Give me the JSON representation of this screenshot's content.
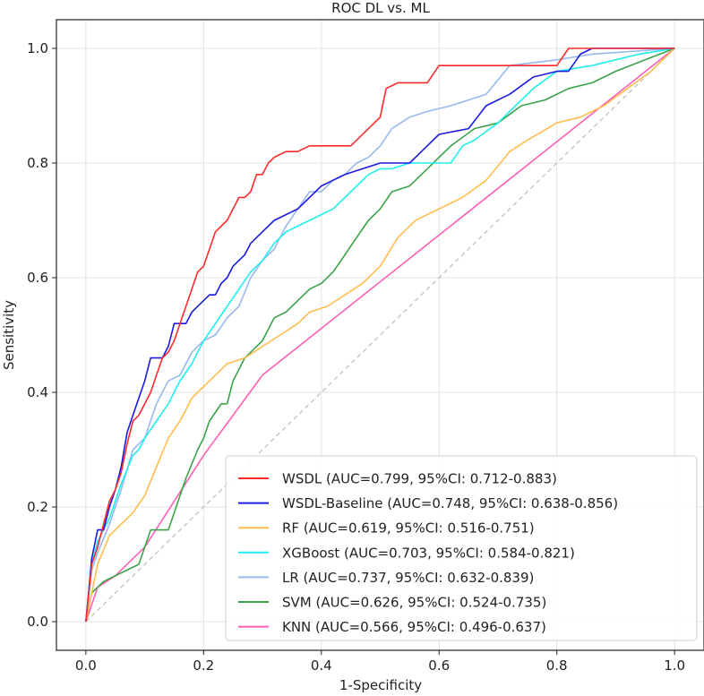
{
  "chart_data": {
    "type": "line",
    "title": "ROC DL vs. ML",
    "xlabel": "1-Specificity",
    "ylabel": "Sensitivity",
    "xlim": [
      -0.05,
      1.05
    ],
    "ylim": [
      -0.05,
      1.05
    ],
    "xticks": [
      0.0,
      0.2,
      0.4,
      0.6,
      0.8,
      1.0
    ],
    "yticks": [
      0.0,
      0.2,
      0.4,
      0.6,
      0.8,
      1.0
    ],
    "xtick_labels": [
      "0.0",
      "0.2",
      "0.4",
      "0.6",
      "0.8",
      "1.0"
    ],
    "ytick_labels": [
      "0.0",
      "0.2",
      "0.4",
      "0.6",
      "0.8",
      "1.0"
    ],
    "grid": true,
    "legend_position": "bottom-right",
    "diagonal": {
      "name": "chance",
      "color": "#bbbbbb",
      "points": [
        [
          0,
          0
        ],
        [
          1,
          1
        ]
      ]
    },
    "series": [
      {
        "name": "WSDL",
        "label": "WSDL (AUC=0.799, 95%CI: 0.712-0.883)",
        "color": "#ff2a2a",
        "points": [
          [
            0,
            0
          ],
          [
            0.01,
            0.1
          ],
          [
            0.02,
            0.13
          ],
          [
            0.03,
            0.17
          ],
          [
            0.04,
            0.21
          ],
          [
            0.05,
            0.23
          ],
          [
            0.06,
            0.26
          ],
          [
            0.07,
            0.31
          ],
          [
            0.08,
            0.35
          ],
          [
            0.09,
            0.36
          ],
          [
            0.1,
            0.38
          ],
          [
            0.11,
            0.4
          ],
          [
            0.12,
            0.43
          ],
          [
            0.13,
            0.46
          ],
          [
            0.14,
            0.47
          ],
          [
            0.15,
            0.49
          ],
          [
            0.16,
            0.52
          ],
          [
            0.17,
            0.55
          ],
          [
            0.18,
            0.58
          ],
          [
            0.19,
            0.61
          ],
          [
            0.2,
            0.62
          ],
          [
            0.21,
            0.65
          ],
          [
            0.22,
            0.68
          ],
          [
            0.24,
            0.7
          ],
          [
            0.26,
            0.74
          ],
          [
            0.27,
            0.74
          ],
          [
            0.28,
            0.75
          ],
          [
            0.29,
            0.78
          ],
          [
            0.3,
            0.78
          ],
          [
            0.31,
            0.8
          ],
          [
            0.32,
            0.81
          ],
          [
            0.34,
            0.82
          ],
          [
            0.36,
            0.82
          ],
          [
            0.38,
            0.83
          ],
          [
            0.45,
            0.83
          ],
          [
            0.46,
            0.84
          ],
          [
            0.48,
            0.86
          ],
          [
            0.5,
            0.88
          ],
          [
            0.51,
            0.93
          ],
          [
            0.53,
            0.94
          ],
          [
            0.58,
            0.94
          ],
          [
            0.6,
            0.97
          ],
          [
            0.8,
            0.97
          ],
          [
            0.82,
            1.0
          ],
          [
            1.0,
            1.0
          ]
        ]
      },
      {
        "name": "WSDL-Baseline",
        "label": "WSDL-Baseline (AUC=0.748, 95%CI: 0.638-0.856)",
        "color": "#1a1ae0",
        "points": [
          [
            0,
            0
          ],
          [
            0.01,
            0.11
          ],
          [
            0.02,
            0.16
          ],
          [
            0.03,
            0.16
          ],
          [
            0.04,
            0.2
          ],
          [
            0.05,
            0.23
          ],
          [
            0.06,
            0.27
          ],
          [
            0.07,
            0.33
          ],
          [
            0.08,
            0.36
          ],
          [
            0.09,
            0.39
          ],
          [
            0.1,
            0.42
          ],
          [
            0.11,
            0.46
          ],
          [
            0.13,
            0.46
          ],
          [
            0.14,
            0.48
          ],
          [
            0.15,
            0.52
          ],
          [
            0.17,
            0.52
          ],
          [
            0.18,
            0.54
          ],
          [
            0.2,
            0.56
          ],
          [
            0.21,
            0.57
          ],
          [
            0.22,
            0.57
          ],
          [
            0.23,
            0.59
          ],
          [
            0.24,
            0.6
          ],
          [
            0.25,
            0.62
          ],
          [
            0.27,
            0.64
          ],
          [
            0.28,
            0.66
          ],
          [
            0.3,
            0.68
          ],
          [
            0.32,
            0.7
          ],
          [
            0.34,
            0.71
          ],
          [
            0.36,
            0.72
          ],
          [
            0.38,
            0.74
          ],
          [
            0.4,
            0.76
          ],
          [
            0.42,
            0.77
          ],
          [
            0.44,
            0.78
          ],
          [
            0.47,
            0.79
          ],
          [
            0.5,
            0.8
          ],
          [
            0.55,
            0.8
          ],
          [
            0.57,
            0.82
          ],
          [
            0.6,
            0.85
          ],
          [
            0.65,
            0.86
          ],
          [
            0.68,
            0.9
          ],
          [
            0.72,
            0.92
          ],
          [
            0.76,
            0.95
          ],
          [
            0.8,
            0.96
          ],
          [
            0.82,
            0.96
          ],
          [
            0.84,
            0.99
          ],
          [
            0.86,
            1.0
          ],
          [
            1.0,
            1.0
          ]
        ]
      },
      {
        "name": "RF",
        "label": "RF (AUC=0.619, 95%CI: 0.516-0.751)",
        "color": "#ffbd4f",
        "points": [
          [
            0,
            0
          ],
          [
            0.02,
            0.1
          ],
          [
            0.04,
            0.15
          ],
          [
            0.06,
            0.17
          ],
          [
            0.08,
            0.19
          ],
          [
            0.1,
            0.22
          ],
          [
            0.12,
            0.27
          ],
          [
            0.14,
            0.32
          ],
          [
            0.16,
            0.35
          ],
          [
            0.18,
            0.39
          ],
          [
            0.2,
            0.41
          ],
          [
            0.22,
            0.43
          ],
          [
            0.24,
            0.45
          ],
          [
            0.27,
            0.46
          ],
          [
            0.3,
            0.48
          ],
          [
            0.33,
            0.5
          ],
          [
            0.36,
            0.52
          ],
          [
            0.38,
            0.54
          ],
          [
            0.41,
            0.55
          ],
          [
            0.44,
            0.57
          ],
          [
            0.47,
            0.59
          ],
          [
            0.5,
            0.62
          ],
          [
            0.53,
            0.67
          ],
          [
            0.56,
            0.7
          ],
          [
            0.6,
            0.72
          ],
          [
            0.64,
            0.74
          ],
          [
            0.68,
            0.77
          ],
          [
            0.72,
            0.82
          ],
          [
            0.75,
            0.84
          ],
          [
            0.8,
            0.87
          ],
          [
            0.84,
            0.88
          ],
          [
            0.88,
            0.9
          ],
          [
            0.92,
            0.93
          ],
          [
            0.96,
            0.96
          ],
          [
            1.0,
            1.0
          ]
        ]
      },
      {
        "name": "XGBoost",
        "label": "XGBoost (AUC=0.703, 95%CI: 0.584-0.821)",
        "color": "#22eeee",
        "points": [
          [
            0,
            0
          ],
          [
            0.01,
            0.1
          ],
          [
            0.02,
            0.14
          ],
          [
            0.04,
            0.18
          ],
          [
            0.06,
            0.24
          ],
          [
            0.08,
            0.29
          ],
          [
            0.09,
            0.3
          ],
          [
            0.1,
            0.32
          ],
          [
            0.12,
            0.35
          ],
          [
            0.14,
            0.38
          ],
          [
            0.16,
            0.42
          ],
          [
            0.18,
            0.45
          ],
          [
            0.2,
            0.49
          ],
          [
            0.22,
            0.52
          ],
          [
            0.24,
            0.55
          ],
          [
            0.26,
            0.58
          ],
          [
            0.28,
            0.61
          ],
          [
            0.3,
            0.63
          ],
          [
            0.32,
            0.66
          ],
          [
            0.34,
            0.68
          ],
          [
            0.36,
            0.69
          ],
          [
            0.38,
            0.7
          ],
          [
            0.4,
            0.71
          ],
          [
            0.42,
            0.72
          ],
          [
            0.44,
            0.74
          ],
          [
            0.46,
            0.76
          ],
          [
            0.48,
            0.78
          ],
          [
            0.5,
            0.79
          ],
          [
            0.52,
            0.79
          ],
          [
            0.55,
            0.8
          ],
          [
            0.62,
            0.8
          ],
          [
            0.64,
            0.83
          ],
          [
            0.66,
            0.84
          ],
          [
            0.7,
            0.87
          ],
          [
            0.74,
            0.91
          ],
          [
            0.76,
            0.93
          ],
          [
            0.8,
            0.96
          ],
          [
            0.86,
            0.97
          ],
          [
            0.9,
            0.98
          ],
          [
            0.94,
            0.99
          ],
          [
            1.0,
            1.0
          ]
        ]
      },
      {
        "name": "LR",
        "label": "LR (AUC=0.737, 95%CI: 0.632-0.839)",
        "color": "#99b8ee",
        "points": [
          [
            0,
            0
          ],
          [
            0.01,
            0.09
          ],
          [
            0.02,
            0.12
          ],
          [
            0.04,
            0.17
          ],
          [
            0.06,
            0.23
          ],
          [
            0.08,
            0.3
          ],
          [
            0.1,
            0.32
          ],
          [
            0.12,
            0.38
          ],
          [
            0.14,
            0.42
          ],
          [
            0.16,
            0.43
          ],
          [
            0.18,
            0.47
          ],
          [
            0.2,
            0.49
          ],
          [
            0.22,
            0.5
          ],
          [
            0.24,
            0.53
          ],
          [
            0.26,
            0.55
          ],
          [
            0.28,
            0.6
          ],
          [
            0.3,
            0.63
          ],
          [
            0.32,
            0.65
          ],
          [
            0.34,
            0.69
          ],
          [
            0.36,
            0.72
          ],
          [
            0.38,
            0.75
          ],
          [
            0.4,
            0.75
          ],
          [
            0.42,
            0.77
          ],
          [
            0.44,
            0.78
          ],
          [
            0.46,
            0.8
          ],
          [
            0.48,
            0.81
          ],
          [
            0.5,
            0.83
          ],
          [
            0.52,
            0.86
          ],
          [
            0.55,
            0.88
          ],
          [
            0.58,
            0.89
          ],
          [
            0.62,
            0.9
          ],
          [
            0.68,
            0.92
          ],
          [
            0.72,
            0.97
          ],
          [
            0.8,
            0.98
          ],
          [
            0.86,
            0.99
          ],
          [
            1.0,
            1.0
          ]
        ]
      },
      {
        "name": "SVM",
        "label": "SVM (AUC=0.626, 95%CI: 0.524-0.735)",
        "color": "#3aa34a",
        "points": [
          [
            0,
            0
          ],
          [
            0.01,
            0.05
          ],
          [
            0.03,
            0.07
          ],
          [
            0.05,
            0.08
          ],
          [
            0.07,
            0.09
          ],
          [
            0.09,
            0.1
          ],
          [
            0.1,
            0.13
          ],
          [
            0.11,
            0.16
          ],
          [
            0.14,
            0.16
          ],
          [
            0.15,
            0.19
          ],
          [
            0.17,
            0.25
          ],
          [
            0.19,
            0.3
          ],
          [
            0.2,
            0.32
          ],
          [
            0.21,
            0.35
          ],
          [
            0.23,
            0.38
          ],
          [
            0.24,
            0.38
          ],
          [
            0.25,
            0.42
          ],
          [
            0.27,
            0.46
          ],
          [
            0.28,
            0.47
          ],
          [
            0.3,
            0.49
          ],
          [
            0.32,
            0.53
          ],
          [
            0.34,
            0.54
          ],
          [
            0.36,
            0.56
          ],
          [
            0.38,
            0.58
          ],
          [
            0.4,
            0.59
          ],
          [
            0.42,
            0.61
          ],
          [
            0.44,
            0.64
          ],
          [
            0.46,
            0.67
          ],
          [
            0.48,
            0.7
          ],
          [
            0.5,
            0.72
          ],
          [
            0.52,
            0.75
          ],
          [
            0.55,
            0.76
          ],
          [
            0.58,
            0.79
          ],
          [
            0.62,
            0.83
          ],
          [
            0.66,
            0.86
          ],
          [
            0.7,
            0.87
          ],
          [
            0.74,
            0.9
          ],
          [
            0.78,
            0.91
          ],
          [
            0.82,
            0.93
          ],
          [
            0.86,
            0.94
          ],
          [
            0.9,
            0.96
          ],
          [
            0.95,
            0.98
          ],
          [
            1.0,
            1.0
          ]
        ]
      },
      {
        "name": "KNN",
        "label": "KNN (AUC=0.566, 95%CI: 0.496-0.637)",
        "color": "#ff5fb3",
        "points": [
          [
            0,
            0
          ],
          [
            0.02,
            0.06
          ],
          [
            0.05,
            0.08
          ],
          [
            0.1,
            0.13
          ],
          [
            0.15,
            0.21
          ],
          [
            0.2,
            0.29
          ],
          [
            0.25,
            0.36
          ],
          [
            0.3,
            0.43
          ],
          [
            1.0,
            1.0
          ]
        ]
      }
    ]
  }
}
